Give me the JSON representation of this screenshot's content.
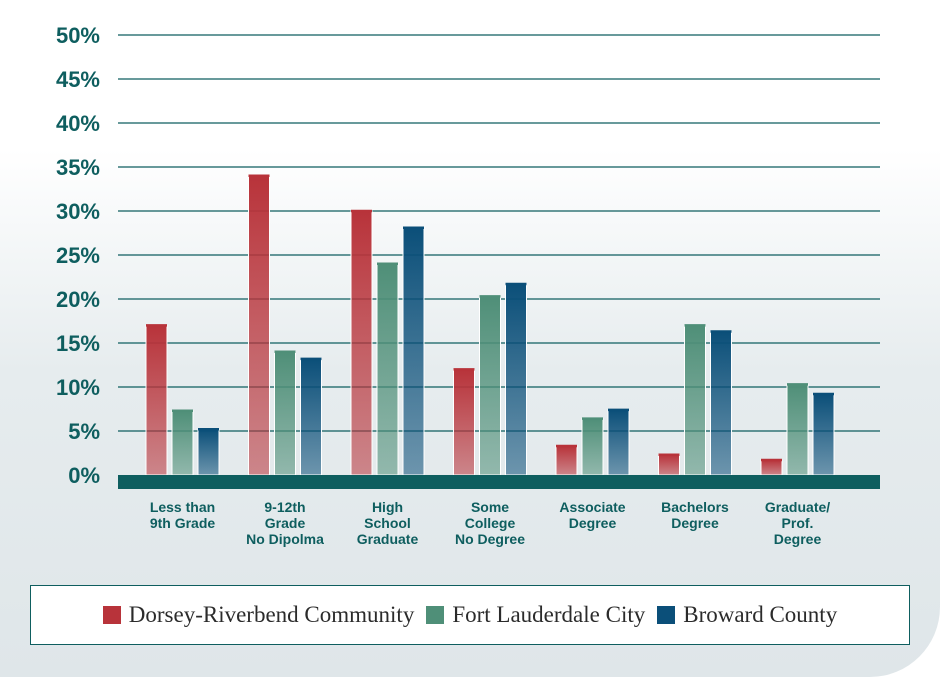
{
  "chart_data": {
    "type": "bar",
    "title": "",
    "xlabel": "",
    "ylabel": "",
    "ylim": [
      0,
      50
    ],
    "yticks": [
      "0%",
      "5%",
      "10%",
      "15%",
      "20%",
      "25%",
      "30%",
      "35%",
      "40%",
      "45%",
      "50%"
    ],
    "grid": true,
    "legend_position": "bottom",
    "categories": [
      [
        "Less than",
        "9th Grade"
      ],
      [
        "9-12th",
        "Grade",
        "No Dipolma"
      ],
      [
        "High",
        "School",
        "Graduate"
      ],
      [
        "Some",
        "College",
        "No Degree"
      ],
      [
        "Associate",
        "Degree"
      ],
      [
        "Bachelors",
        "Degree"
      ],
      [
        "Graduate/",
        "Prof.",
        "Degree"
      ]
    ],
    "series": [
      {
        "name": "Dorsey-Riverbend Community",
        "color": "#b8333a",
        "values": [
          17,
          34,
          30,
          12,
          3.3,
          2.3,
          1.7
        ]
      },
      {
        "name": "Fort Lauderdale City",
        "color": "#4f8f78",
        "values": [
          7.3,
          14,
          24,
          20.3,
          6.4,
          17,
          10.3
        ]
      },
      {
        "name": "Broward County",
        "color": "#0b4f79",
        "values": [
          5.2,
          13.2,
          28.1,
          21.7,
          7.4,
          16.3,
          9.2
        ]
      }
    ]
  },
  "colors": {
    "axis_band": "#0e5e5f",
    "grid_line": "#0e5e5f",
    "text": "#0e5e5f"
  }
}
